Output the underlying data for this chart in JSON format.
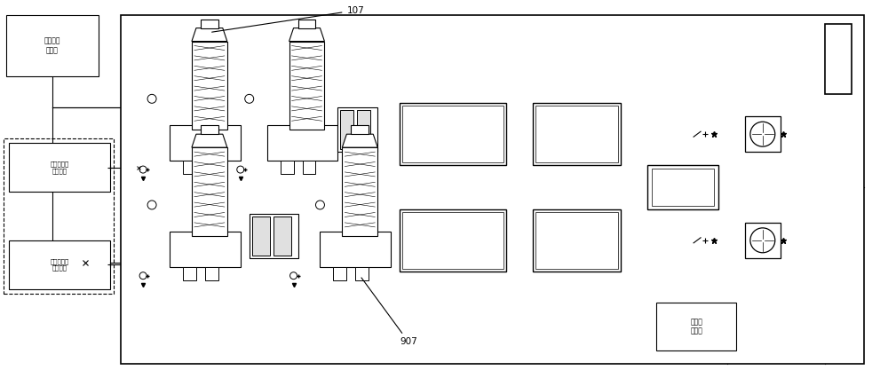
{
  "label_107": "107",
  "label_907": "907",
  "label_water_tank": "工业用水\n存储槽",
  "label_high_conc": "高浓度废气\n产生区域",
  "label_low_conc": "低浓度废气\n产生区域",
  "label_sewage": "污水处\n理系统",
  "fig_width": 10.0,
  "fig_height": 4.26,
  "dpi": 100
}
